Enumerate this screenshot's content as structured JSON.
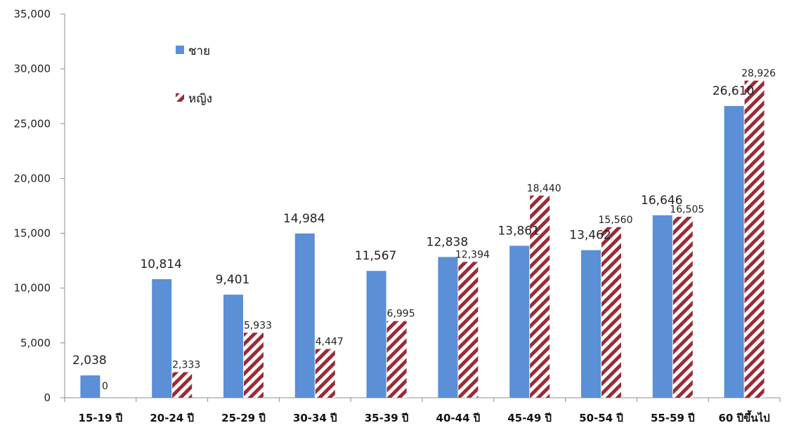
{
  "chart_data": {
    "type": "bar",
    "categories": [
      "15-19 ปี",
      "20-24 ปี",
      "25-29 ปี",
      "30-34 ปี",
      "35-39 ปี",
      "40-44 ปี",
      "45-49 ปี",
      "50-54 ปี",
      "55-59 ปี",
      "60 ปีขึ้นไป"
    ],
    "series": [
      {
        "name": "ชาย",
        "values": [
          2038,
          10814,
          9401,
          14984,
          11567,
          12838,
          13861,
          13462,
          16646,
          26610
        ],
        "labels": [
          "2,038",
          "10,814",
          "9,401",
          "14,984",
          "11,567",
          "12,838",
          "13,861",
          "13,462",
          "16,646",
          "26,610"
        ],
        "color": "#5b8fd6",
        "pattern": "solid"
      },
      {
        "name": "หญิง",
        "values": [
          0,
          2333,
          5933,
          4447,
          6995,
          12394,
          18440,
          15560,
          16505,
          28926
        ],
        "labels": [
          "0",
          "2,333",
          "5,933",
          "4,447",
          "6,995",
          "12,394",
          "18,440",
          "15,560",
          "16,505",
          "28,926"
        ],
        "color": "#9b2b35",
        "pattern": "diagonal-stripes"
      }
    ],
    "ylim": [
      0,
      35000
    ],
    "yticks": [
      0,
      5000,
      10000,
      15000,
      20000,
      25000,
      30000,
      35000
    ],
    "ytick_labels": [
      "0",
      "5,000",
      "10,000",
      "15,000",
      "20,000",
      "25,000",
      "30,000",
      "35,000"
    ],
    "title": "",
    "xlabel": "",
    "ylabel": "",
    "legend_position": "top-left",
    "grid": false
  }
}
